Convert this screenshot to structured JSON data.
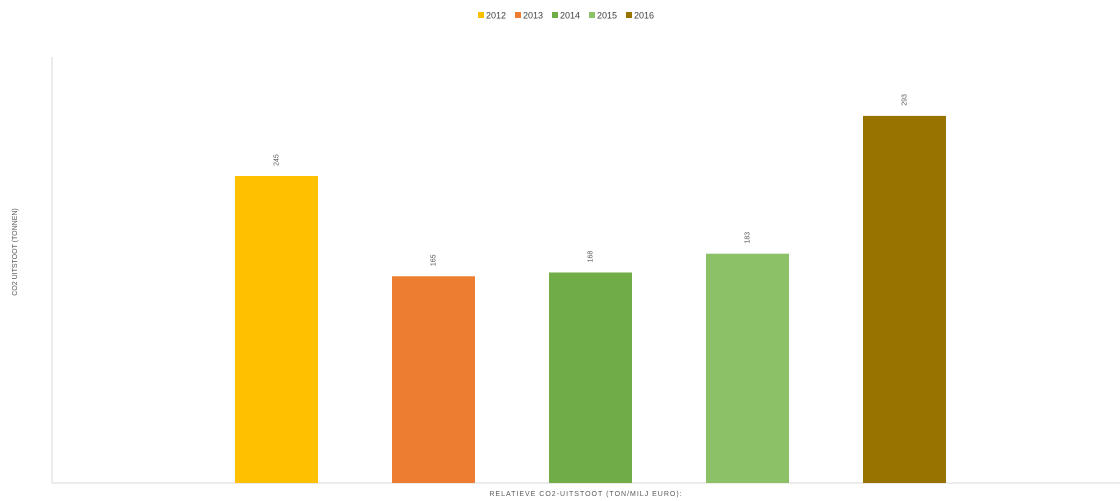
{
  "chart_data": {
    "type": "bar",
    "title": "",
    "xlabel": "RELATIEVE CO2-UITSTOOT (TON/MILJ EURO):",
    "ylabel": "CO2 UITSTOOT (TONNEN)",
    "ylim": [
      0,
      340
    ],
    "grid": false,
    "legend_position": "top",
    "series": [
      {
        "name": "2012",
        "value": 245,
        "value_label": "245",
        "color": "#FFC000"
      },
      {
        "name": "2013",
        "value": 165,
        "value_label": "165",
        "color": "#ED7D31"
      },
      {
        "name": "2014",
        "value": 168,
        "value_label": "168",
        "color": "#70AD47"
      },
      {
        "name": "2015",
        "value": 183,
        "value_label": "183",
        "color": "#8CC168"
      },
      {
        "name": "2016",
        "value": 293,
        "value_label": "293",
        "color": "#997300"
      }
    ]
  }
}
